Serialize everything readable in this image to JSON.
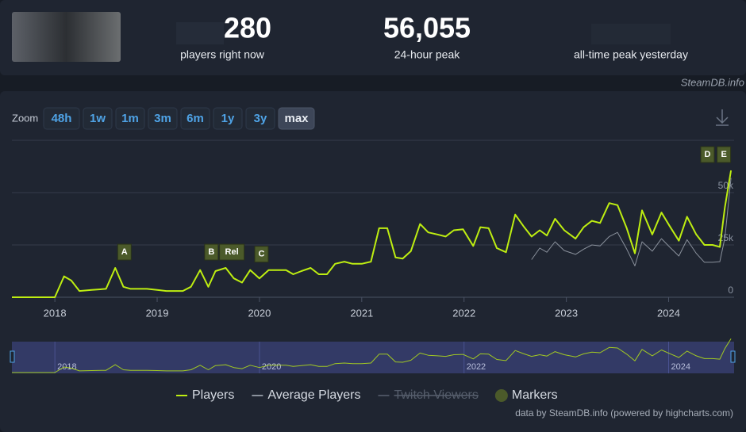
{
  "header": {
    "current_players": "280",
    "current_label": "players right now",
    "peak_24h": "56,055",
    "peak_label": "24-hour peak",
    "all_time_label": "all-time peak yesterday",
    "source": "SteamDB.info"
  },
  "zoom": {
    "label": "Zoom",
    "options": [
      "48h",
      "1w",
      "1m",
      "3m",
      "6m",
      "1y",
      "3y",
      "max"
    ],
    "active_index": 7
  },
  "chart_data": {
    "type": "line",
    "x": [
      2017.58,
      2018.0,
      2018.09,
      2018.16,
      2018.24,
      2018.36,
      2018.5,
      2018.59,
      2018.67,
      2018.74,
      2018.9,
      2019.0,
      2019.09,
      2019.25,
      2019.33,
      2019.42,
      2019.5,
      2019.57,
      2019.67,
      2019.75,
      2019.83,
      2019.91,
      2020.0,
      2020.09,
      2020.18,
      2020.26,
      2020.33,
      2020.41,
      2020.5,
      2020.58,
      2020.66,
      2020.74,
      2020.83,
      2020.91,
      2021.0,
      2021.09,
      2021.17,
      2021.25,
      2021.33,
      2021.4,
      2021.48,
      2021.57,
      2021.65,
      2021.74,
      2021.82,
      2021.9,
      2021.99,
      2022.09,
      2022.16,
      2022.24,
      2022.32,
      2022.41,
      2022.5,
      2022.58,
      2022.66,
      2022.74,
      2022.81,
      2022.89,
      2022.98,
      2023.09,
      2023.17,
      2023.25,
      2023.33,
      2023.42,
      2023.5,
      2023.59,
      2023.67,
      2023.74,
      2023.84,
      2023.93,
      2024.01,
      2024.1,
      2024.18,
      2024.27,
      2024.35,
      2024.43,
      2024.5,
      2024.55,
      2024.61
    ],
    "xlim": [
      2017.58,
      2024.64
    ],
    "xticks": [
      2018,
      2019,
      2020,
      2021,
      2022,
      2023,
      2024
    ],
    "ylim": [
      0,
      75000
    ],
    "yticks": [
      0,
      {
        "value": 25000,
        "label": "25k"
      },
      {
        "value": 50000,
        "label": "50k"
      }
    ],
    "grid": true,
    "series": [
      {
        "name": "Players",
        "color": "#beee11",
        "values": [
          0,
          0,
          10000,
          8000,
          3000,
          3500,
          4000,
          14000,
          5000,
          4000,
          4000,
          3500,
          3000,
          3000,
          5000,
          13000,
          5000,
          12500,
          14000,
          9000,
          7000,
          13000,
          9000,
          13000,
          13000,
          13000,
          11000,
          12500,
          14000,
          11000,
          11000,
          16000,
          17000,
          16000,
          16000,
          17000,
          33000,
          33000,
          19000,
          18500,
          22000,
          35000,
          31000,
          30000,
          29000,
          32000,
          32500,
          24500,
          33500,
          33000,
          23500,
          21500,
          39500,
          34000,
          29000,
          32000,
          29500,
          37500,
          32000,
          28000,
          33500,
          36500,
          35500,
          45000,
          44000,
          33000,
          21000,
          41500,
          30000,
          40500,
          34000,
          27000,
          38500,
          30000,
          25000,
          25000,
          24000,
          43000,
          60600
        ]
      },
      {
        "name": "Average Players",
        "color": "#8a919c",
        "values": [
          null,
          null,
          null,
          null,
          null,
          null,
          null,
          null,
          null,
          null,
          null,
          null,
          null,
          null,
          null,
          null,
          null,
          null,
          null,
          null,
          null,
          null,
          null,
          null,
          null,
          null,
          null,
          null,
          null,
          null,
          null,
          null,
          null,
          null,
          null,
          null,
          null,
          null,
          null,
          null,
          null,
          null,
          null,
          null,
          null,
          null,
          null,
          null,
          null,
          null,
          null,
          null,
          null,
          null,
          18000,
          23500,
          21500,
          26500,
          22300,
          20500,
          23000,
          25000,
          24500,
          29000,
          31000,
          23000,
          15000,
          26500,
          22000,
          28000,
          24000,
          19700,
          27500,
          21000,
          16700,
          16700,
          17000,
          28400,
          57000
        ]
      }
    ],
    "hidden_series": [
      {
        "name": "Twitch Viewers",
        "color": "#4a5160"
      }
    ],
    "markers": {
      "name": "Markers",
      "color": "#4b5a2a",
      "items": [
        {
          "label": "A",
          "x": 2018.68
        },
        {
          "label": "B",
          "x": 2019.53
        },
        {
          "label": "Rel",
          "x": 2019.73
        },
        {
          "label": "C",
          "x": 2020.02
        },
        {
          "label": "D",
          "x": 2024.38
        },
        {
          "label": "E",
          "x": 2024.54
        }
      ]
    },
    "navigator_xticks": [
      2018,
      2020,
      2022,
      2024
    ]
  },
  "credit": "data by SteamDB.info (powered by highcharts.com)"
}
